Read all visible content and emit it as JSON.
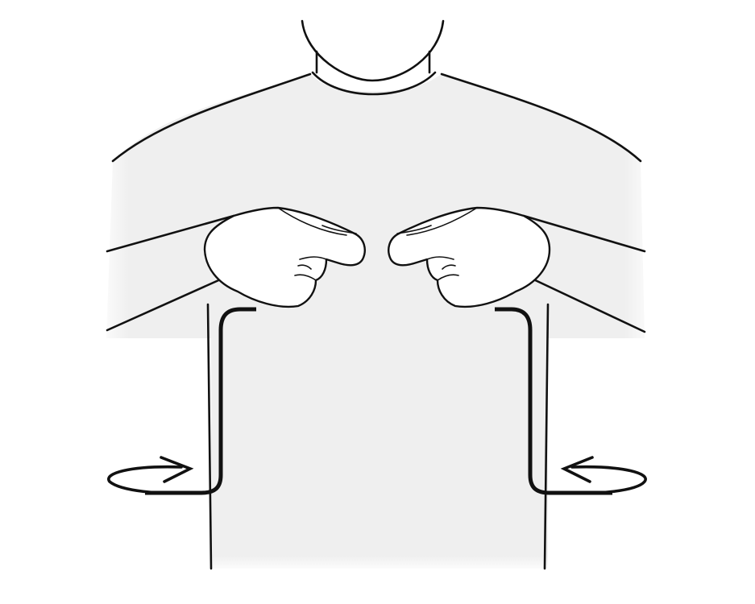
{
  "figure": {
    "subject": "sign-language-gesture",
    "colors": {
      "background": "#ffffff",
      "body_fill": "#efefef",
      "line": "#111111"
    },
    "icons": [
      "left-rotation-arrow-icon",
      "right-rotation-arrow-icon"
    ]
  }
}
